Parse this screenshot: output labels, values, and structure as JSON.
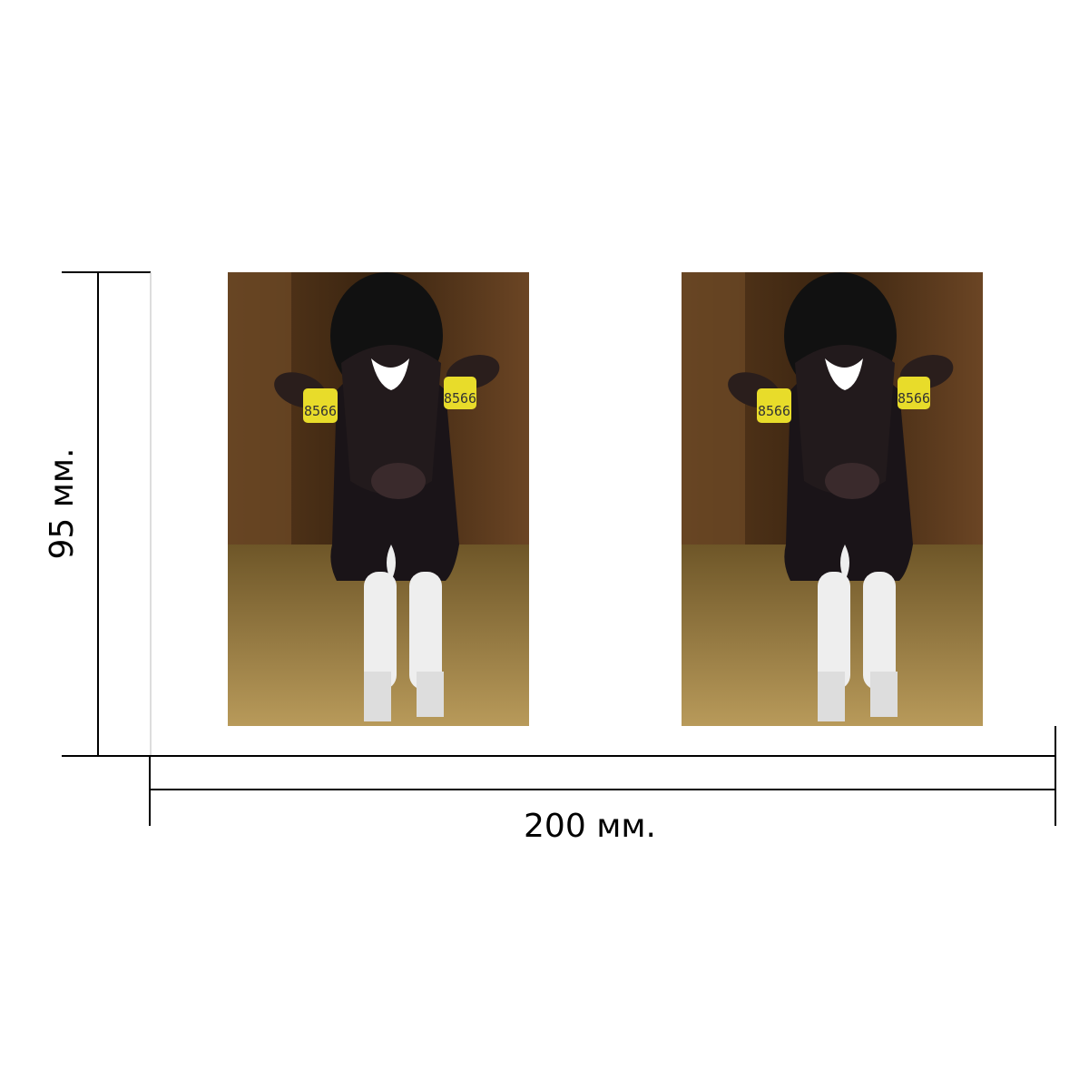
{
  "dimensions": {
    "height_label": "95 мм.",
    "width_label": "200 мм."
  },
  "photos": [
    {
      "tags": [
        "8566",
        "8566"
      ]
    },
    {
      "tags": [
        "8566",
        "8566"
      ]
    }
  ]
}
